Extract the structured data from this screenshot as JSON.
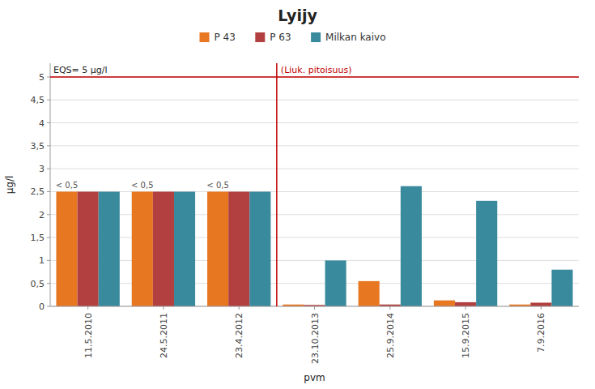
{
  "chart_data": {
    "type": "bar",
    "title": "Lyijy",
    "x_label": "pvm",
    "y_label": "μg/l",
    "categories": [
      "11.5.2010",
      "24.5.2011",
      "23.4.2012",
      "23.10.2013",
      "25.9.2014",
      "15.9.2015",
      "7.9.2016"
    ],
    "series": [
      {
        "name": "P 43",
        "color": "#E87722",
        "values": [
          2.5,
          2.5,
          2.5,
          0.04,
          0.55,
          0.13,
          0.04
        ]
      },
      {
        "name": "P 63",
        "color": "#B34040",
        "values": [
          2.5,
          2.5,
          2.5,
          0.03,
          0.04,
          0.09,
          0.08
        ]
      },
      {
        "name": "Milkan kaivo",
        "color": "#3A8A9E",
        "values": [
          2.5,
          2.5,
          2.5,
          1.0,
          2.62,
          2.3,
          0.8
        ]
      }
    ],
    "ylim": [
      0,
      5.3
    ],
    "yticks": [
      0,
      {
        "value": 0.5,
        "label": "0,5"
      },
      1,
      {
        "value": 1.5,
        "label": "1,5"
      },
      2,
      {
        "value": 2.5,
        "label": "2,5"
      },
      3,
      {
        "value": 3.5,
        "label": "3,5"
      },
      4,
      {
        "value": 4.5,
        "label": "4,5"
      },
      5
    ],
    "grid": true,
    "legend": "top",
    "annotations": [
      {
        "text": "< 0,5",
        "category": "11.5.2010",
        "series": "P 43"
      },
      {
        "text": "< 0,5",
        "category": "24.5.2011",
        "series": "P 43"
      },
      {
        "text": "< 0,5",
        "category": "23.4.2012",
        "series": "P 43"
      }
    ],
    "reference_lines": [
      {
        "axis": "y",
        "value": 5.0,
        "label": "EQS= 5 μg/l",
        "color": "#C00000"
      },
      {
        "axis": "x",
        "between": [
          "23.4.2012",
          "23.10.2013"
        ],
        "label": "(Liuk. pitoisuus)",
        "color": "#C00000"
      }
    ]
  }
}
